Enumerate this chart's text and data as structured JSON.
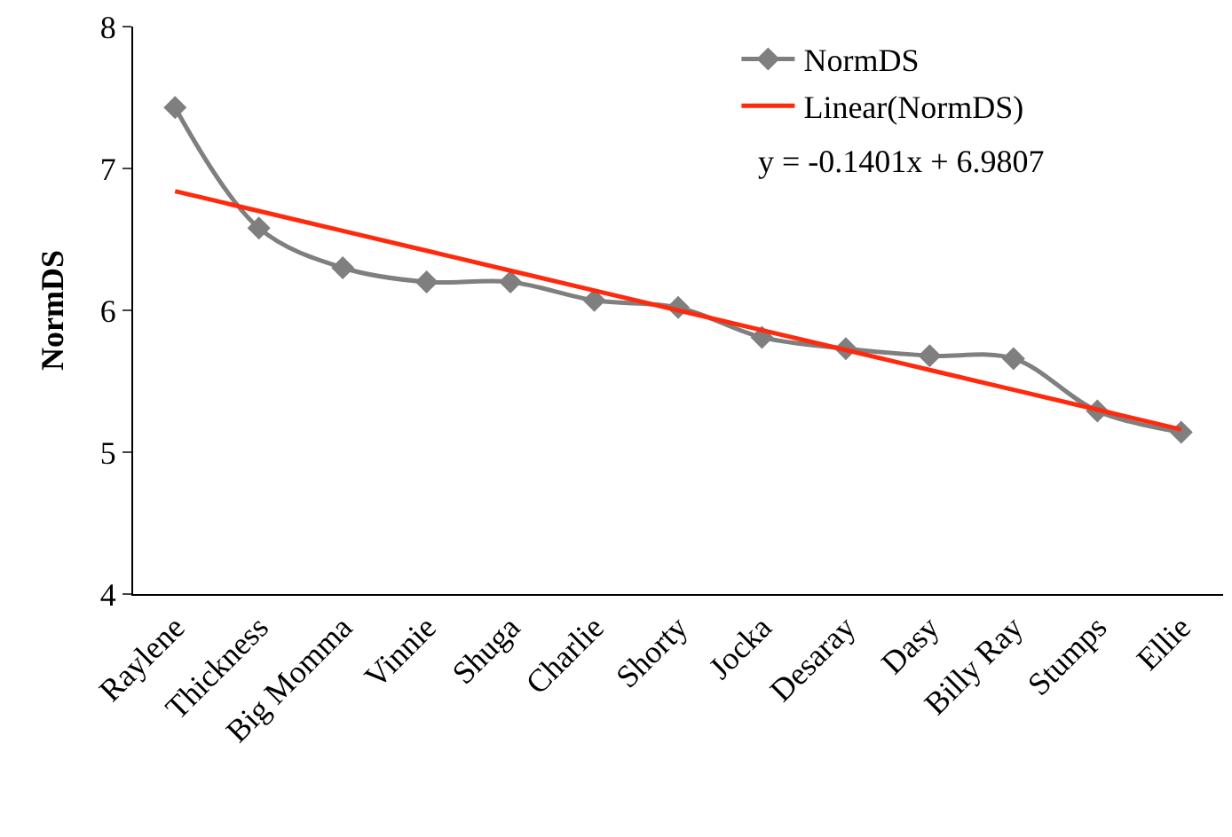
{
  "chart_data": {
    "type": "line",
    "ylabel": "NormDS",
    "categories": [
      "Raylene",
      "Thickness",
      "Big Momma",
      "Vinnie",
      "Shuga",
      "Charlie",
      "Shorty",
      "Jocka",
      "Desaray",
      "Dasy",
      "Billy Ray",
      "Stumps",
      "Ellie"
    ],
    "series": [
      {
        "name": "NormDS",
        "color": "#7f7f7f",
        "marker": "diamond",
        "values": [
          7.43,
          6.58,
          6.3,
          6.2,
          6.2,
          6.07,
          6.02,
          5.81,
          5.73,
          5.68,
          5.66,
          5.29,
          5.14
        ]
      },
      {
        "name": "Linear(NormDS)",
        "color": "#ff2a0d",
        "marker": "none",
        "values": [
          6.84,
          6.7,
          6.56,
          6.42,
          6.28,
          6.14,
          6.0,
          5.86,
          5.72,
          5.58,
          5.44,
          5.3,
          5.16
        ]
      }
    ],
    "ylim": [
      4,
      8
    ],
    "yticks": [
      4,
      5,
      6,
      7,
      8
    ],
    "legend": "top right",
    "annotations": [
      "y = -0.1401x + 6.9807"
    ]
  }
}
